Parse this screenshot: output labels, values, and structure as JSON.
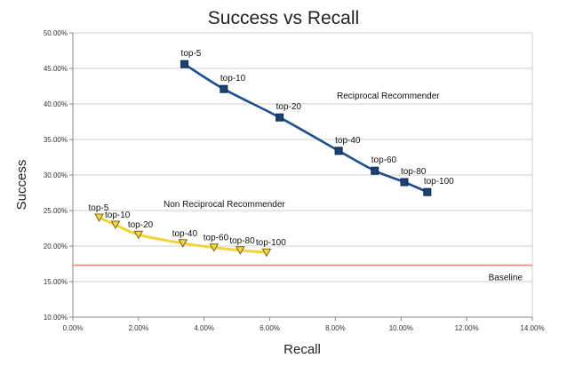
{
  "chart_data": {
    "type": "line",
    "title": "Success vs Recall",
    "xlabel": "Recall",
    "ylabel": "Success",
    "xlim": [
      0,
      14
    ],
    "ylim": [
      10,
      50
    ],
    "x_ticks": [
      "0.00%",
      "2.00%",
      "4.00%",
      "6.00%",
      "8.00%",
      "10.00%",
      "12.00%",
      "14.00%"
    ],
    "y_ticks": [
      "10.00%",
      "15.00%",
      "20.00%",
      "25.00%",
      "30.00%",
      "35.00%",
      "40.00%",
      "45.00%",
      "50.00%"
    ],
    "grid": "horizontal",
    "series": [
      {
        "name": "Reciprocal Recommender",
        "color": "#1f4e8c",
        "marker": "square",
        "labels": [
          "top-5",
          "top-10",
          "top-20",
          "top-40",
          "top-60",
          "top-80",
          "top-100"
        ],
        "x": [
          3.4,
          4.6,
          6.3,
          8.1,
          9.2,
          10.1,
          10.8
        ],
        "y": [
          45.6,
          42.1,
          38.1,
          33.4,
          30.6,
          29.0,
          27.6
        ]
      },
      {
        "name": "Non Reciprocal Recommender",
        "color": "#f2d43a",
        "marker": "triangle-down",
        "labels": [
          "top-5",
          "top-10",
          "top-20",
          "top-40",
          "top-60",
          "top-80",
          "top-100"
        ],
        "x": [
          0.8,
          1.3,
          2.0,
          3.35,
          4.3,
          5.1,
          5.9
        ],
        "y": [
          24.0,
          23.0,
          21.6,
          20.4,
          19.8,
          19.4,
          19.1
        ]
      }
    ],
    "baseline": {
      "name": "Baseline",
      "y": 17.3,
      "color": "#f08a6c"
    }
  }
}
